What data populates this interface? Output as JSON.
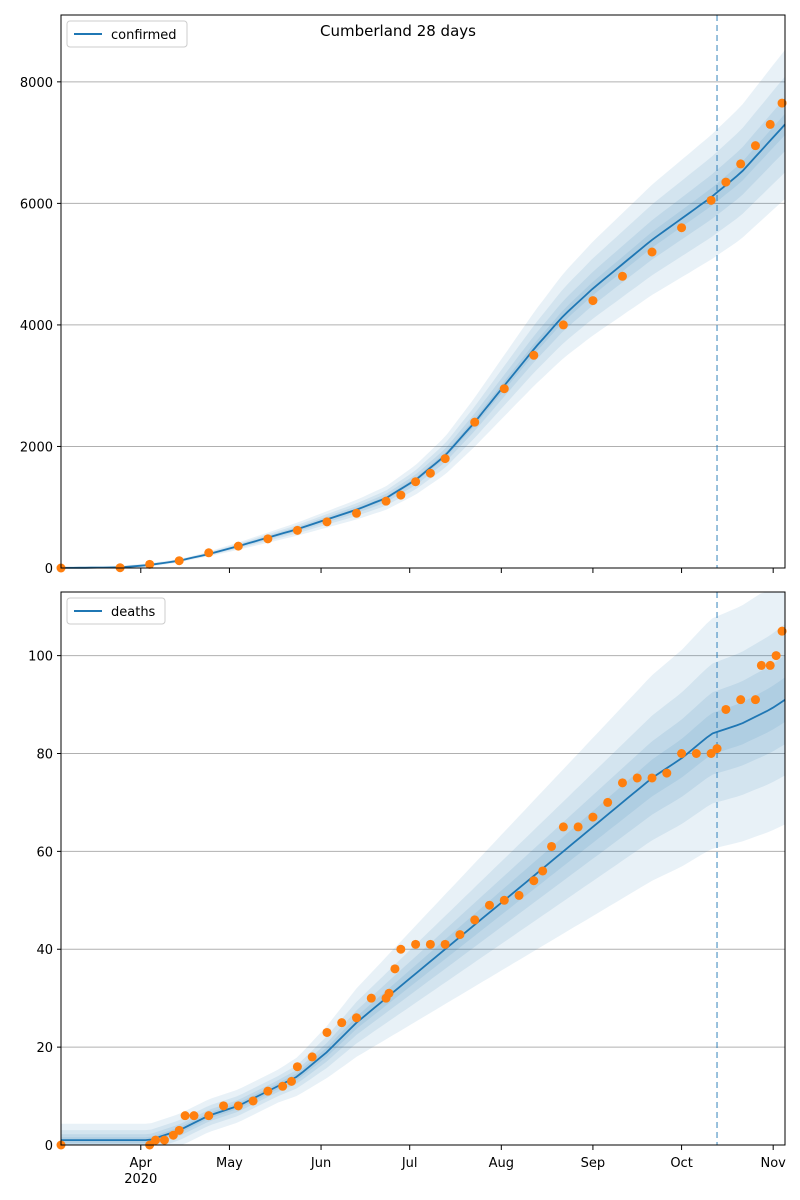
{
  "title": "Cumberland 28 days",
  "colors": {
    "line": "#1f77b4",
    "points": "#ff7f0e",
    "band": "#1f77b4",
    "grid": "#b0b0b0",
    "forecast_line": "#1f77b4"
  },
  "x_axis": {
    "domain": [
      0,
      245
    ],
    "forecast_start_day": 222,
    "ticks": [
      {
        "day": 27,
        "label": "Apr"
      },
      {
        "day": 57,
        "label": "May"
      },
      {
        "day": 88,
        "label": "Jun"
      },
      {
        "day": 118,
        "label": "Jul"
      },
      {
        "day": 149,
        "label": "Aug"
      },
      {
        "day": 180,
        "label": "Sep"
      },
      {
        "day": 210,
        "label": "Oct"
      },
      {
        "day": 241,
        "label": "Nov"
      }
    ],
    "year_label": "2020"
  },
  "chart_data": [
    {
      "type": "line",
      "legend": "confirmed",
      "legend_position": "top-left",
      "ylim": [
        0,
        9100
      ],
      "yticks": [
        "0",
        "2000",
        "4000",
        "6000",
        "8000"
      ],
      "grid": "horizontal",
      "observed_days": [
        0,
        20,
        30,
        40,
        50,
        60,
        70,
        80,
        90,
        100,
        110,
        115,
        120,
        125,
        130,
        140,
        150,
        160,
        170,
        180,
        190,
        200,
        210,
        220,
        225,
        230,
        235,
        240,
        244
      ],
      "observed_values": [
        0,
        5,
        60,
        120,
        250,
        360,
        480,
        620,
        760,
        900,
        1100,
        1200,
        1420,
        1560,
        1800,
        2400,
        2950,
        3500,
        4000,
        4400,
        4800,
        5200,
        5600,
        6050,
        6350,
        6650,
        6950,
        7300,
        7650
      ],
      "model_days": [
        0,
        20,
        30,
        40,
        50,
        60,
        70,
        80,
        90,
        100,
        110,
        120,
        130,
        140,
        150,
        160,
        170,
        180,
        190,
        200,
        210,
        220,
        230,
        245
      ],
      "model_values": [
        0,
        10,
        50,
        120,
        230,
        360,
        500,
        640,
        800,
        960,
        1150,
        1450,
        1850,
        2400,
        3000,
        3600,
        4150,
        4600,
        5000,
        5400,
        5750,
        6100,
        6500,
        7300
      ],
      "band_widths": [
        0.2,
        0.5,
        0.9,
        1.4
      ]
    },
    {
      "type": "line",
      "legend": "deaths",
      "legend_position": "top-left",
      "ylim": [
        0,
        113
      ],
      "yticks": [
        "0",
        "20",
        "40",
        "60",
        "80",
        "100"
      ],
      "grid": "horizontal",
      "observed_days": [
        0,
        30,
        32,
        35,
        38,
        40,
        42,
        45,
        50,
        55,
        60,
        65,
        70,
        75,
        78,
        80,
        85,
        90,
        95,
        100,
        105,
        110,
        111,
        113,
        115,
        120,
        125,
        130,
        135,
        140,
        145,
        150,
        155,
        160,
        163,
        166,
        170,
        175,
        180,
        185,
        190,
        195,
        200,
        205,
        210,
        215,
        220,
        222,
        225,
        230,
        235,
        237,
        240,
        242,
        244
      ],
      "observed_values": [
        0,
        0,
        1,
        1,
        2,
        3,
        6,
        6,
        6,
        8,
        8,
        9,
        11,
        12,
        13,
        16,
        18,
        23,
        25,
        26,
        30,
        30,
        31,
        36,
        40,
        41,
        41,
        41,
        43,
        46,
        49,
        50,
        51,
        54,
        56,
        61,
        65,
        65,
        67,
        70,
        74,
        75,
        75,
        76,
        80,
        80,
        80,
        81,
        89,
        91,
        91,
        98,
        98,
        100,
        105
      ],
      "model_days": [
        0,
        30,
        40,
        50,
        60,
        70,
        80,
        90,
        100,
        110,
        120,
        130,
        140,
        150,
        160,
        170,
        180,
        190,
        200,
        210,
        220,
        230,
        240,
        245
      ],
      "model_values": [
        1,
        1,
        3,
        6,
        8,
        11,
        14,
        19,
        25,
        30,
        35,
        40,
        45,
        50,
        55,
        60,
        65,
        70,
        75,
        79,
        84,
        86,
        89,
        91
      ],
      "band_widths": [
        0.05,
        0.1,
        0.17,
        0.28
      ]
    }
  ]
}
